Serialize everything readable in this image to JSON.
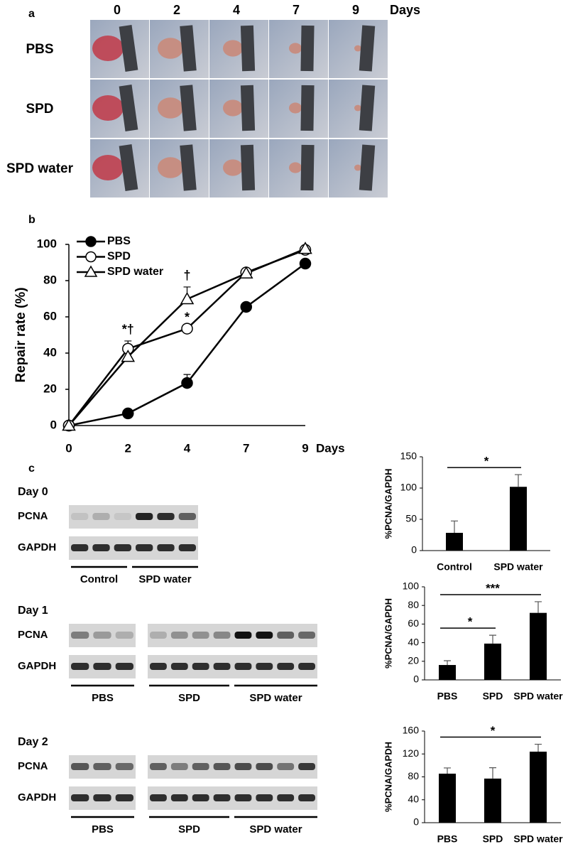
{
  "panel_a": {
    "label": "a",
    "columns": [
      "0",
      "2",
      "4",
      "7",
      "9"
    ],
    "unit": "Days",
    "rows": [
      "PBS",
      "SPD",
      "SPD water"
    ]
  },
  "chart_data": [
    {
      "type": "line",
      "panel_label": "b",
      "categories": [
        "0",
        "2",
        "4",
        "7",
        "9"
      ],
      "xlabel": "Days",
      "ylabel": "Repair rate (%)",
      "ylim": [
        0,
        100
      ],
      "yticks": [
        0,
        20,
        40,
        60,
        80,
        100
      ],
      "legend": "upper left",
      "series": [
        {
          "name": "PBS",
          "color": "#000000",
          "marker": "circle",
          "fill": "#000000",
          "values": [
            0,
            6.7,
            23.5,
            65.5,
            89.4
          ],
          "errors": [
            null,
            null,
            4.7,
            null,
            null
          ]
        },
        {
          "name": "SPD",
          "color": "#000000",
          "marker": "circle",
          "fill": "#ffffff",
          "values": [
            0,
            42.4,
            53.5,
            84.5,
            97
          ],
          "errors": [
            null,
            4.3,
            null,
            null,
            null
          ]
        },
        {
          "name": "SPD water",
          "color": "#000000",
          "marker": "triangle",
          "fill": "#ffffff",
          "values": [
            0,
            38,
            69.8,
            84,
            97.6
          ],
          "errors": [
            null,
            null,
            6.7,
            null,
            null
          ]
        }
      ],
      "annotations": [
        {
          "label": "*†",
          "category": "2",
          "series": "SPD"
        },
        {
          "label": "*",
          "category": "4",
          "series": "SPD"
        },
        {
          "label": "†",
          "category": "4",
          "series": "SPD water"
        }
      ]
    },
    {
      "type": "bar",
      "categories": [
        "Control",
        "SPD water"
      ],
      "values": [
        28.4,
        102
      ],
      "errors": [
        19,
        19.5
      ],
      "ylabel": "%PCNA/GAPDH",
      "ylim": [
        0,
        150
      ],
      "yticks": [
        0,
        50,
        100,
        150
      ],
      "color": "#000000",
      "significance": [
        {
          "label": "*",
          "between": [
            "Control",
            "SPD water"
          ]
        }
      ]
    },
    {
      "type": "bar",
      "categories": [
        "PBS",
        "SPD",
        "SPD water"
      ],
      "values": [
        16,
        39,
        72
      ],
      "errors": [
        4.6,
        9,
        12
      ],
      "ylabel": "%PCNA/GAPDH",
      "ylim": [
        0,
        100
      ],
      "yticks": [
        0,
        20,
        40,
        60,
        80,
        100
      ],
      "color": "#000000",
      "significance": [
        {
          "label": "*",
          "between": [
            "PBS",
            "SPD"
          ]
        },
        {
          "label": "***",
          "between": [
            "PBS",
            "SPD water"
          ]
        }
      ]
    },
    {
      "type": "bar",
      "categories": [
        "PBS",
        "SPD",
        "SPD water"
      ],
      "values": [
        85.6,
        77,
        124
      ],
      "errors": [
        10,
        19,
        13
      ],
      "ylabel": "%PCNA/GAPDH",
      "ylim": [
        0,
        160
      ],
      "yticks": [
        0,
        40,
        80,
        120,
        160
      ],
      "color": "#000000",
      "significance": [
        {
          "label": "*",
          "between": [
            "PBS",
            "SPD water"
          ]
        }
      ]
    }
  ],
  "panel_c": {
    "label": "c",
    "days": [
      {
        "title": "Day 0",
        "rows": [
          "PCNA",
          "GAPDH"
        ],
        "groups": [
          "Control",
          "SPD water"
        ]
      },
      {
        "title": "Day 1",
        "rows": [
          "PCNA",
          "GAPDH"
        ],
        "groups": [
          "PBS",
          "SPD",
          "SPD water"
        ]
      },
      {
        "title": "Day 2",
        "rows": [
          "PCNA",
          "GAPDH"
        ],
        "groups": [
          "PBS",
          "SPD",
          "SPD water"
        ]
      }
    ]
  }
}
